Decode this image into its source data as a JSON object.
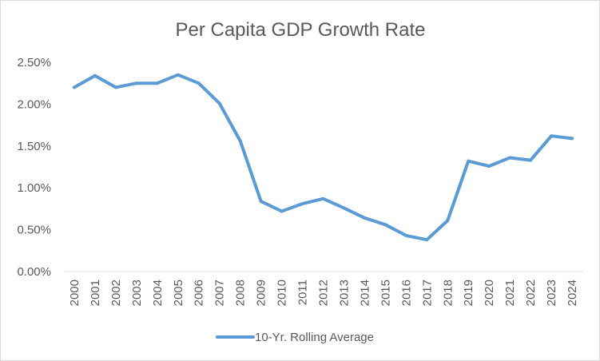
{
  "chart_data": {
    "type": "line",
    "title": "Per Capita GDP Growth Rate",
    "xlabel": "",
    "ylabel": "",
    "categories": [
      "2000",
      "2001",
      "2002",
      "2003",
      "2004",
      "2005",
      "2006",
      "2007",
      "2008",
      "2009",
      "2010",
      "2011",
      "2012",
      "2013",
      "2014",
      "2015",
      "2016",
      "2017",
      "2018",
      "2019",
      "2020",
      "2021",
      "2022",
      "2023",
      "2024"
    ],
    "series": [
      {
        "name": "10-Yr. Rolling Average",
        "color": "#5b9bd5",
        "values": [
          2.2,
          2.34,
          2.2,
          2.25,
          2.25,
          2.35,
          2.25,
          2.01,
          1.56,
          0.84,
          0.72,
          0.81,
          0.87,
          0.76,
          0.64,
          0.56,
          0.43,
          0.38,
          0.61,
          1.32,
          1.26,
          1.36,
          1.33,
          1.62,
          1.59
        ]
      }
    ],
    "ylim": [
      0,
      2.5
    ],
    "yticks": [
      0,
      0.5,
      1.0,
      1.5,
      2.0,
      2.5
    ],
    "ytick_labels": [
      "0.00%",
      "0.50%",
      "1.00%",
      "1.50%",
      "2.00%",
      "2.50%"
    ],
    "grid": false,
    "legend_position": "bottom",
    "colors": {
      "text": "#595959",
      "axis": "#d9d9d9",
      "line": "#5b9bd5"
    }
  }
}
